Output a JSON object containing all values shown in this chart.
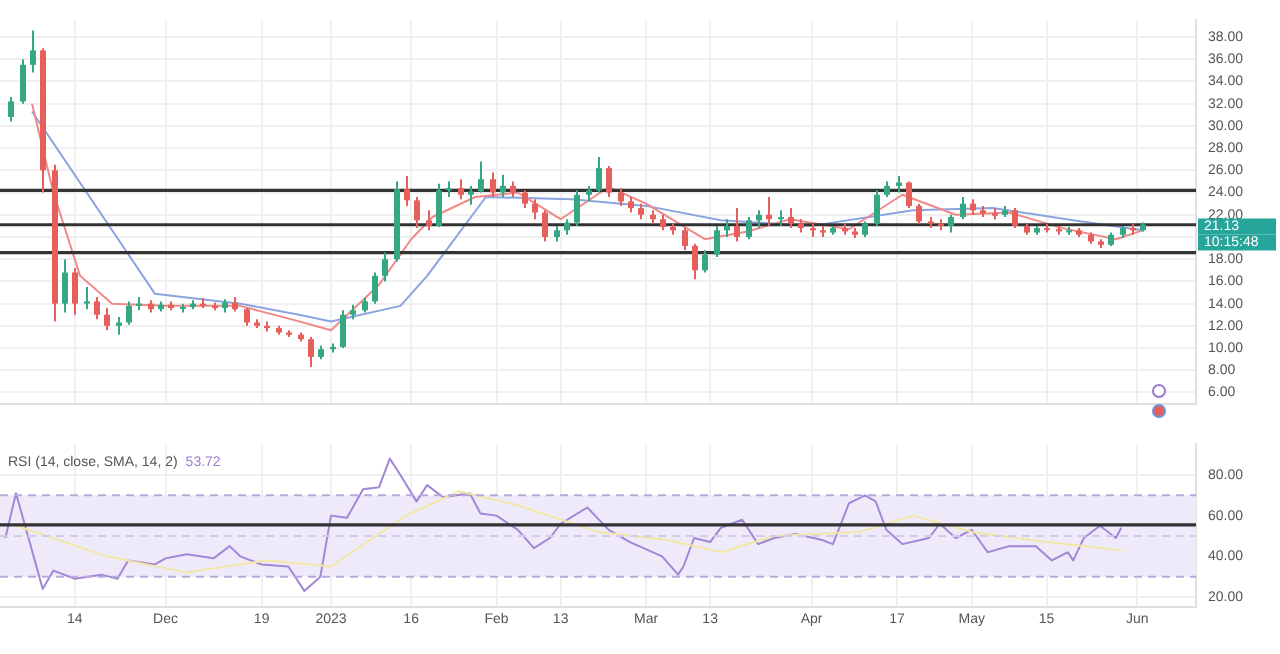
{
  "chart_data": [
    {
      "type": "candlestick",
      "grid": true,
      "tick_labels": "y",
      "xlim": [
        "2022-10-31",
        "2023-06-12"
      ],
      "xticks": [
        {
          "value": "2022-11-14",
          "label": null
        },
        {
          "value": "2022-12-01",
          "label": null
        },
        {
          "value": "2022-12-19",
          "label": null
        },
        {
          "value": "2023-01-01",
          "label": null
        },
        {
          "value": "2023-01-16",
          "label": null
        },
        {
          "value": "2023-02-01",
          "label": null
        },
        {
          "value": "2023-02-13",
          "label": null
        },
        {
          "value": "2023-03-01",
          "label": null
        },
        {
          "value": "2023-03-13",
          "label": null
        },
        {
          "value": "2023-04-01",
          "label": null
        },
        {
          "value": "2023-04-17",
          "label": null
        },
        {
          "value": "2023-05-01",
          "label": null
        },
        {
          "value": "2023-05-15",
          "label": null
        },
        {
          "value": "2023-06-01",
          "label": null
        }
      ],
      "ylim": [
        5,
        39.5
      ],
      "yticks": [
        {
          "value": 6,
          "label": "6.00"
        },
        {
          "value": 8,
          "label": "8.00"
        },
        {
          "value": 10,
          "label": "10.00"
        },
        {
          "value": 12,
          "label": "12.00"
        },
        {
          "value": 14,
          "label": "14.00"
        },
        {
          "value": 16,
          "label": "16.00"
        },
        {
          "value": 18,
          "label": "18.00"
        },
        {
          "value": 20,
          "label": null
        },
        {
          "value": 22,
          "label": "22.00"
        },
        {
          "value": 24,
          "label": "24.00"
        },
        {
          "value": 26,
          "label": "26.00"
        },
        {
          "value": 28,
          "label": "28.00"
        },
        {
          "value": 30,
          "label": "30.00"
        },
        {
          "value": 32,
          "label": "32.00"
        },
        {
          "value": 34,
          "label": "34.00"
        },
        {
          "value": 36,
          "label": "36.00"
        },
        {
          "value": 38,
          "label": "38.00"
        }
      ],
      "ref_lines": [
        {
          "axis": "y",
          "value": 24.2,
          "color": "#333333"
        },
        {
          "axis": "y",
          "value": 21.1,
          "color": "#333333"
        },
        {
          "axis": "y",
          "value": 18.6,
          "color": "#333333"
        }
      ],
      "annotations": [
        "21.13",
        "10:15:48"
      ],
      "series": [
        {
          "type": "line",
          "color": "#f08a8a",
          "x": [
            "2022-11-06",
            "2022-11-10",
            "2022-11-15",
            "2022-11-21",
            "2022-12-01",
            "2022-12-15",
            "2022-12-26",
            "2023-01-01",
            "2023-01-10",
            "2023-01-16",
            "2023-01-20",
            "2023-01-28",
            "2023-02-05",
            "2023-02-13",
            "2023-02-22",
            "2023-03-01",
            "2023-03-12",
            "2023-03-20",
            "2023-03-28",
            "2023-04-08",
            "2023-04-18",
            "2023-04-28",
            "2023-05-08",
            "2023-05-18",
            "2023-05-28",
            "2023-06-02"
          ],
          "values": [
            32,
            24,
            16.5,
            14,
            13.8,
            13.8,
            12.4,
            11.6,
            15.7,
            19.8,
            21.8,
            23.6,
            24.0,
            21.6,
            24.5,
            23.0,
            19.8,
            20.5,
            21.6,
            20.7,
            23.8,
            22.0,
            22.2,
            20.8,
            19.8,
            20.6
          ]
        },
        {
          "type": "line",
          "color": "#8aa4e0",
          "x": [
            "2022-11-06",
            "2022-11-29",
            "2022-12-15",
            "2022-12-26",
            "2023-01-01",
            "2023-01-14",
            "2023-01-19",
            "2023-01-30",
            "2023-02-15",
            "2023-03-01",
            "2023-03-15",
            "2023-04-01",
            "2023-04-20",
            "2023-05-05",
            "2023-05-20",
            "2023-06-02"
          ],
          "values": [
            31.3,
            14.9,
            14.0,
            13.0,
            12.4,
            13.8,
            16.5,
            23.6,
            23.4,
            22.8,
            21.5,
            21.0,
            22.4,
            22.6,
            21.5,
            20.6
          ]
        },
        {
          "type": "candlestick",
          "x": [
            "2022-11-02",
            "2022-11-04",
            "2022-11-06",
            "2022-11-08",
            "2022-11-10",
            "2022-11-12",
            "2022-11-14",
            "2022-11-16",
            "2022-11-18",
            "2022-11-20",
            "2022-11-22",
            "2022-11-24",
            "2022-11-26",
            "2022-11-28",
            "2022-11-30",
            "2022-12-02",
            "2022-12-04",
            "2022-12-06",
            "2022-12-08",
            "2022-12-10",
            "2022-12-12",
            "2022-12-14",
            "2022-12-16",
            "2022-12-18",
            "2022-12-20",
            "2022-12-22",
            "2022-12-24",
            "2022-12-26",
            "2022-12-28",
            "2022-12-30",
            "2023-01-01",
            "2023-01-03",
            "2023-01-05",
            "2023-01-07",
            "2023-01-09",
            "2023-01-11",
            "2023-01-13",
            "2023-01-15",
            "2023-01-17",
            "2023-01-19",
            "2023-01-21",
            "2023-01-23",
            "2023-01-25",
            "2023-01-27",
            "2023-01-29",
            "2023-01-31",
            "2023-02-02",
            "2023-02-04",
            "2023-02-06",
            "2023-02-08",
            "2023-02-10",
            "2023-02-12",
            "2023-02-14",
            "2023-02-16",
            "2023-02-18",
            "2023-02-20",
            "2023-02-22",
            "2023-02-24",
            "2023-02-26",
            "2023-02-28",
            "2023-03-02",
            "2023-03-04",
            "2023-03-06",
            "2023-03-08",
            "2023-03-10",
            "2023-03-12",
            "2023-03-14",
            "2023-03-16",
            "2023-03-18",
            "2023-03-20",
            "2023-03-22",
            "2023-03-24",
            "2023-03-26",
            "2023-03-28",
            "2023-03-30",
            "2023-04-01",
            "2023-04-03",
            "2023-04-05",
            "2023-04-07",
            "2023-04-09",
            "2023-04-11",
            "2023-04-13",
            "2023-04-15",
            "2023-04-17",
            "2023-04-19",
            "2023-04-21",
            "2023-04-23",
            "2023-04-25",
            "2023-04-27",
            "2023-04-29",
            "2023-05-01",
            "2023-05-03",
            "2023-05-05",
            "2023-05-07",
            "2023-05-09",
            "2023-05-11",
            "2023-05-13",
            "2023-05-15",
            "2023-05-17",
            "2023-05-19",
            "2023-05-21",
            "2023-05-23",
            "2023-05-25",
            "2023-05-27",
            "2023-05-29",
            "2023-05-31",
            "2023-06-02"
          ],
          "ohlc": [
            [
              30.8,
              32.6,
              30.4,
              32.2
            ],
            [
              32.2,
              36.0,
              32.0,
              35.5
            ],
            [
              35.5,
              38.6,
              34.8,
              36.8
            ],
            [
              36.8,
              37.0,
              24.0,
              26.0
            ],
            [
              26.0,
              26.5,
              12.4,
              14.0
            ],
            [
              14.0,
              18.0,
              13.2,
              16.8
            ],
            [
              16.8,
              17.2,
              13.0,
              14.0
            ],
            [
              14.0,
              15.5,
              13.5,
              14.2
            ],
            [
              14.2,
              14.6,
              12.6,
              13.0
            ],
            [
              13.0,
              13.6,
              11.6,
              12.0
            ],
            [
              12.0,
              12.8,
              11.2,
              12.3
            ],
            [
              12.3,
              14.2,
              12.1,
              13.8
            ],
            [
              13.8,
              14.6,
              13.4,
              14.0
            ],
            [
              14.0,
              14.3,
              13.2,
              13.5
            ],
            [
              13.5,
              14.2,
              13.3,
              13.9
            ],
            [
              13.9,
              14.2,
              13.4,
              13.6
            ],
            [
              13.6,
              14.0,
              13.2,
              13.7
            ],
            [
              13.7,
              14.3,
              13.5,
              14.0
            ],
            [
              14.0,
              14.5,
              13.6,
              13.8
            ],
            [
              13.8,
              14.1,
              13.4,
              13.6
            ],
            [
              13.6,
              14.4,
              13.2,
              14.1
            ],
            [
              14.1,
              14.6,
              13.3,
              13.5
            ],
            [
              13.5,
              13.6,
              12.0,
              12.3
            ],
            [
              12.3,
              12.6,
              11.8,
              12.0
            ],
            [
              12.0,
              12.4,
              11.5,
              11.8
            ],
            [
              11.8,
              12.0,
              11.2,
              11.4
            ],
            [
              11.4,
              11.6,
              11.0,
              11.2
            ],
            [
              11.2,
              11.4,
              10.6,
              10.8
            ],
            [
              10.8,
              11.0,
              8.3,
              9.2
            ],
            [
              9.2,
              10.2,
              9.0,
              9.9
            ],
            [
              9.9,
              10.4,
              9.6,
              10.1
            ],
            [
              10.1,
              13.4,
              10.0,
              13.0
            ],
            [
              13.0,
              13.9,
              12.6,
              13.4
            ],
            [
              13.4,
              14.5,
              13.2,
              14.2
            ],
            [
              14.2,
              16.8,
              14.0,
              16.5
            ],
            [
              16.5,
              18.6,
              16.0,
              18.0
            ],
            [
              18.0,
              25.0,
              17.8,
              24.3
            ],
            [
              24.3,
              25.5,
              22.8,
              23.3
            ],
            [
              23.3,
              23.6,
              20.8,
              21.5
            ],
            [
              21.5,
              22.4,
              20.6,
              21.0
            ],
            [
              21.0,
              24.8,
              20.9,
              24.2
            ],
            [
              24.2,
              25.0,
              23.6,
              24.4
            ],
            [
              24.4,
              25.2,
              23.4,
              23.8
            ],
            [
              23.8,
              24.6,
              22.9,
              24.1
            ],
            [
              24.1,
              26.8,
              24.0,
              25.2
            ],
            [
              25.2,
              25.8,
              23.6,
              24.0
            ],
            [
              24.0,
              25.6,
              23.6,
              24.6
            ],
            [
              24.6,
              25.0,
              23.6,
              24.0
            ],
            [
              24.0,
              24.2,
              22.6,
              23.0
            ],
            [
              23.0,
              23.4,
              21.6,
              22.2
            ],
            [
              22.2,
              22.4,
              19.6,
              20.0
            ],
            [
              20.0,
              21.0,
              19.6,
              20.6
            ],
            [
              20.6,
              21.6,
              20.2,
              21.3
            ],
            [
              21.3,
              24.2,
              21.0,
              23.8
            ],
            [
              23.8,
              24.6,
              23.2,
              24.2
            ],
            [
              24.2,
              27.2,
              24.0,
              26.2
            ],
            [
              26.2,
              26.4,
              23.6,
              24.0
            ],
            [
              24.0,
              24.4,
              22.8,
              23.2
            ],
            [
              23.2,
              23.6,
              22.2,
              22.6
            ],
            [
              22.6,
              23.0,
              21.6,
              22.0
            ],
            [
              22.0,
              22.4,
              21.2,
              21.6
            ],
            [
              21.6,
              22.0,
              20.6,
              20.9
            ],
            [
              20.9,
              21.2,
              20.2,
              20.6
            ],
            [
              20.6,
              20.8,
              18.8,
              19.2
            ],
            [
              19.2,
              19.4,
              16.2,
              17.0
            ],
            [
              17.0,
              18.8,
              16.8,
              18.4
            ],
            [
              18.4,
              21.0,
              18.2,
              20.6
            ],
            [
              20.6,
              21.6,
              20.0,
              21.0
            ],
            [
              21.0,
              22.6,
              19.6,
              20.0
            ],
            [
              20.0,
              21.8,
              19.8,
              21.5
            ],
            [
              21.5,
              22.4,
              20.8,
              22.0
            ],
            [
              22.0,
              23.6,
              21.0,
              21.6
            ],
            [
              21.6,
              22.4,
              21.0,
              21.8
            ],
            [
              21.8,
              22.6,
              20.8,
              21.2
            ],
            [
              21.2,
              21.6,
              20.4,
              20.8
            ],
            [
              20.8,
              21.2,
              20.0,
              20.6
            ],
            [
              20.6,
              21.0,
              20.0,
              20.4
            ],
            [
              20.4,
              21.0,
              20.2,
              20.8
            ],
            [
              20.8,
              21.2,
              20.2,
              20.5
            ],
            [
              20.5,
              20.8,
              19.9,
              20.2
            ],
            [
              20.2,
              21.4,
              20.0,
              21.2
            ],
            [
              21.2,
              24.2,
              21.0,
              23.8
            ],
            [
              23.8,
              25.0,
              23.6,
              24.6
            ],
            [
              24.6,
              25.5,
              24.0,
              24.9
            ],
            [
              24.9,
              25.0,
              22.6,
              22.8
            ],
            [
              22.8,
              23.0,
              21.2,
              21.4
            ],
            [
              21.4,
              21.8,
              20.8,
              21.2
            ],
            [
              21.2,
              21.6,
              20.6,
              21.0
            ],
            [
              21.0,
              22.0,
              20.4,
              21.8
            ],
            [
              21.8,
              23.6,
              21.6,
              23.0
            ],
            [
              23.0,
              23.4,
              22.0,
              22.4
            ],
            [
              22.4,
              22.8,
              21.8,
              22.1
            ],
            [
              22.1,
              22.6,
              21.6,
              22.0
            ],
            [
              22.0,
              22.8,
              21.8,
              22.4
            ],
            [
              22.4,
              22.6,
              20.8,
              21.0
            ],
            [
              21.0,
              21.2,
              20.2,
              20.4
            ],
            [
              20.4,
              21.0,
              20.2,
              20.8
            ],
            [
              20.8,
              21.2,
              20.4,
              20.7
            ],
            [
              20.7,
              21.0,
              20.2,
              20.5
            ],
            [
              20.5,
              20.9,
              20.2,
              20.6
            ],
            [
              20.6,
              20.8,
              20.0,
              20.2
            ],
            [
              20.2,
              20.4,
              19.4,
              19.6
            ],
            [
              19.6,
              19.8,
              19.0,
              19.3
            ],
            [
              19.3,
              20.4,
              19.2,
              20.2
            ],
            [
              20.2,
              21.0,
              19.9,
              20.8
            ],
            [
              20.8,
              21.2,
              20.2,
              20.6
            ],
            [
              20.6,
              21.3,
              20.5,
              21.13
            ]
          ],
          "colors": [
            "#35a883",
            "#35a883",
            "#35a883",
            "#e5605d",
            "#e5605d",
            "#35a883",
            "#e5605d",
            "#35a883",
            "#e5605d",
            "#e5605d",
            "#35a883",
            "#35a883",
            "#35a883",
            "#e5605d",
            "#35a883",
            "#e5605d",
            "#35a883",
            "#35a883",
            "#e5605d",
            "#e5605d",
            "#35a883",
            "#e5605d",
            "#e5605d",
            "#e5605d",
            "#e5605d",
            "#e5605d",
            "#e5605d",
            "#e5605d",
            "#e5605d",
            "#35a883",
            "#35a883",
            "#35a883",
            "#35a883",
            "#35a883",
            "#35a883",
            "#35a883",
            "#35a883",
            "#e5605d",
            "#e5605d",
            "#e5605d",
            "#35a883",
            "#35a883",
            "#e5605d",
            "#35a883",
            "#35a883",
            "#e5605d",
            "#35a883",
            "#e5605d",
            "#e5605d",
            "#e5605d",
            "#e5605d",
            "#35a883",
            "#35a883",
            "#35a883",
            "#35a883",
            "#35a883",
            "#e5605d",
            "#e5605d",
            "#e5605d",
            "#e5605d",
            "#e5605d",
            "#e5605d",
            "#e5605d",
            "#e5605d",
            "#e5605d",
            "#35a883",
            "#35a883",
            "#35a883",
            "#e5605d",
            "#35a883",
            "#35a883",
            "#e5605d",
            "#35a883",
            "#e5605d",
            "#e5605d",
            "#e5605d",
            "#e5605d",
            "#35a883",
            "#e5605d",
            "#e5605d",
            "#35a883",
            "#35a883",
            "#35a883",
            "#35a883",
            "#e5605d",
            "#e5605d",
            "#e5605d",
            "#e5605d",
            "#35a883",
            "#35a883",
            "#e5605d",
            "#e5605d",
            "#e5605d",
            "#35a883",
            "#e5605d",
            "#e5605d",
            "#35a883",
            "#e5605d",
            "#e5605d",
            "#35a883",
            "#e5605d",
            "#e5605d",
            "#e5605d",
            "#35a883",
            "#35a883",
            "#e5605d",
            "#35a883"
          ]
        }
      ]
    },
    {
      "type": "line",
      "grid": true,
      "title": "RSI (14, close, SMA, 14, 2)",
      "annotations": [
        "53.72"
      ],
      "xlim": [
        "2022-10-31",
        "2023-06-12"
      ],
      "xticks": [
        {
          "value": "2022-11-14",
          "label": "14"
        },
        {
          "value": "2022-12-01",
          "label": "Dec"
        },
        {
          "value": "2022-12-19",
          "label": "19"
        },
        {
          "value": "2023-01-01",
          "label": "2023"
        },
        {
          "value": "2023-01-16",
          "label": "16"
        },
        {
          "value": "2023-02-01",
          "label": "Feb"
        },
        {
          "value": "2023-02-13",
          "label": "13"
        },
        {
          "value": "2023-03-01",
          "label": "Mar"
        },
        {
          "value": "2023-03-13",
          "label": "13"
        },
        {
          "value": "2023-04-01",
          "label": "Apr"
        },
        {
          "value": "2023-04-17",
          "label": "17"
        },
        {
          "value": "2023-05-01",
          "label": "May"
        },
        {
          "value": "2023-05-15",
          "label": "15"
        },
        {
          "value": "2023-06-01",
          "label": "Jun"
        }
      ],
      "ylim": [
        15,
        95
      ],
      "yticks": [
        {
          "value": 20,
          "label": "20.00"
        },
        {
          "value": 40,
          "label": "40.00"
        },
        {
          "value": 60,
          "label": "60.00"
        },
        {
          "value": 80,
          "label": "80.00"
        }
      ],
      "bands": [
        {
          "axis": "y",
          "from": 30,
          "to": 70,
          "color": "#efeafa"
        }
      ],
      "ref_lines": [
        {
          "axis": "y",
          "value": 70,
          "color": "#b8a8dc",
          "line_style": "dashed"
        },
        {
          "axis": "y",
          "value": 50,
          "color": "#d4cbea",
          "line_style": "dashed"
        },
        {
          "axis": "y",
          "value": 30,
          "color": "#b8a8dc",
          "line_style": "dashed"
        },
        {
          "axis": "y",
          "value": 55.5,
          "color": "#333333"
        }
      ],
      "series": [
        {
          "color": "#f2e7a6",
          "x": [
            "2022-11-03",
            "2022-11-20",
            "2022-12-05",
            "2022-12-20",
            "2023-01-01",
            "2023-01-15",
            "2023-01-25",
            "2023-02-05",
            "2023-02-20",
            "2023-03-05",
            "2023-03-15",
            "2023-03-25",
            "2023-04-10",
            "2023-04-20",
            "2023-05-01",
            "2023-05-15",
            "2023-05-29"
          ],
          "values": [
            55,
            40,
            32,
            38,
            35,
            60,
            72,
            65,
            52,
            48,
            42,
            50,
            52,
            60,
            52,
            47,
            43
          ]
        },
        {
          "color": "#a287d6",
          "x": [
            "2022-11-01",
            "2022-11-03",
            "2022-11-08",
            "2022-11-10",
            "2022-11-14",
            "2022-11-19",
            "2022-11-22",
            "2022-11-24",
            "2022-11-29",
            "2022-12-01",
            "2022-12-05",
            "2022-12-10",
            "2022-12-13",
            "2022-12-15",
            "2022-12-19",
            "2022-12-24",
            "2022-12-27",
            "2022-12-30",
            "2023-01-01",
            "2023-01-04",
            "2023-01-07",
            "2023-01-10",
            "2023-01-12",
            "2023-01-14",
            "2023-01-17",
            "2023-01-19",
            "2023-01-22",
            "2023-01-27",
            "2023-01-29",
            "2023-02-01",
            "2023-02-05",
            "2023-02-08",
            "2023-02-11",
            "2023-02-13",
            "2023-02-18",
            "2023-02-22",
            "2023-02-26",
            "2023-03-04",
            "2023-03-07",
            "2023-03-08",
            "2023-03-10",
            "2023-03-13",
            "2023-03-15",
            "2023-03-19",
            "2023-03-22",
            "2023-03-25",
            "2023-03-29",
            "2023-04-03",
            "2023-04-05",
            "2023-04-08",
            "2023-04-11",
            "2023-04-13",
            "2023-04-15",
            "2023-04-18",
            "2023-04-23",
            "2023-04-25",
            "2023-04-28",
            "2023-05-01",
            "2023-05-04",
            "2023-05-08",
            "2023-05-13",
            "2023-05-16",
            "2023-05-19",
            "2023-05-20",
            "2023-05-22",
            "2023-05-25",
            "2023-05-28",
            "2023-05-29"
          ],
          "values": [
            49,
            71,
            24,
            33,
            29,
            31,
            29,
            38,
            36,
            39,
            41,
            39,
            45,
            40,
            36,
            35,
            23,
            30,
            60,
            59,
            73,
            74,
            88,
            80,
            67,
            75,
            69,
            71,
            61,
            60,
            53,
            44,
            49,
            56,
            64,
            53,
            47,
            40,
            31,
            35,
            49,
            47,
            54,
            58,
            46,
            49,
            51,
            48,
            46,
            66,
            70,
            67,
            53,
            46,
            49,
            56,
            49,
            53,
            42,
            45,
            45,
            38,
            42,
            38,
            49,
            55,
            49,
            54
          ]
        }
      ]
    }
  ]
}
